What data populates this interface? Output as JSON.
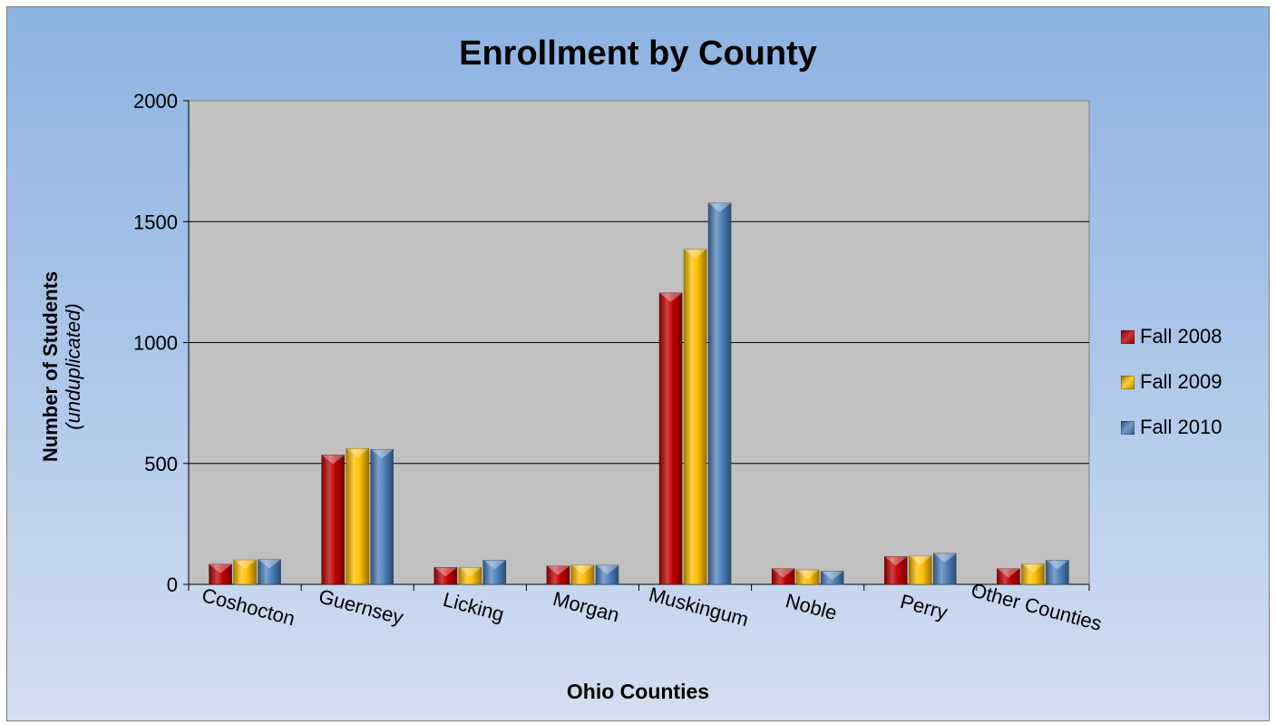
{
  "chart_data": {
    "type": "bar",
    "title": "Enrollment by County",
    "xlabel": "Ohio Counties",
    "ylabel": "Number of Students",
    "ylabel_sub": "(unduplicated)",
    "ylim": [
      0,
      2000
    ],
    "yticks": [
      "0",
      "500",
      "1000",
      "1500",
      "2000"
    ],
    "ytick_values": [
      0,
      500,
      1000,
      1500,
      2000
    ],
    "grid": true,
    "legend_position": "right",
    "categories": [
      "Coshocton",
      "Guernsey",
      "Licking",
      "Morgan",
      "Muskingum",
      "Noble",
      "Perry",
      "Other Counties"
    ],
    "series": [
      {
        "name": "Fall 2008",
        "color": "#c00000",
        "values": [
          83,
          535,
          70,
          76,
          1205,
          65,
          115,
          65
        ]
      },
      {
        "name": "Fall 2009",
        "color": "#ffc000",
        "values": [
          101,
          562,
          70,
          80,
          1385,
          60,
          118,
          85
        ]
      },
      {
        "name": "Fall 2010",
        "color": "#4f81bd",
        "values": [
          103,
          558,
          100,
          79,
          1577,
          55,
          128,
          100
        ]
      }
    ]
  }
}
